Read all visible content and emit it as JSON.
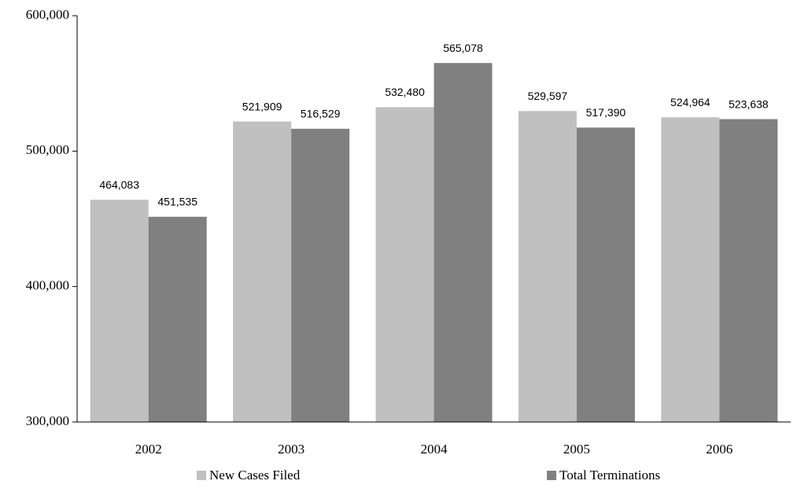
{
  "chart_data": {
    "type": "bar",
    "categories": [
      "2002",
      "2003",
      "2004",
      "2005",
      "2006"
    ],
    "series": [
      {
        "name": "New Cases Filed",
        "color": "#c0c0c0",
        "values": [
          464083,
          521909,
          532480,
          529597,
          524964
        ],
        "value_labels": [
          "464,083",
          "521,909",
          "532,480",
          "529,597",
          "524,964"
        ]
      },
      {
        "name": "Total Terminations",
        "color": "#808080",
        "values": [
          451535,
          516529,
          565078,
          517390,
          523638
        ],
        "value_labels": [
          "451,535",
          "516,529",
          "565,078",
          "517,390",
          "523,638"
        ]
      }
    ],
    "ylim": [
      300000,
      600000
    ],
    "yticks": [
      {
        "value": 300000,
        "label": "300,000"
      },
      {
        "value": 400000,
        "label": "400,000"
      },
      {
        "value": 500000,
        "label": "500,000"
      },
      {
        "value": 600000,
        "label": "600,000"
      }
    ],
    "legend": "bottom"
  }
}
